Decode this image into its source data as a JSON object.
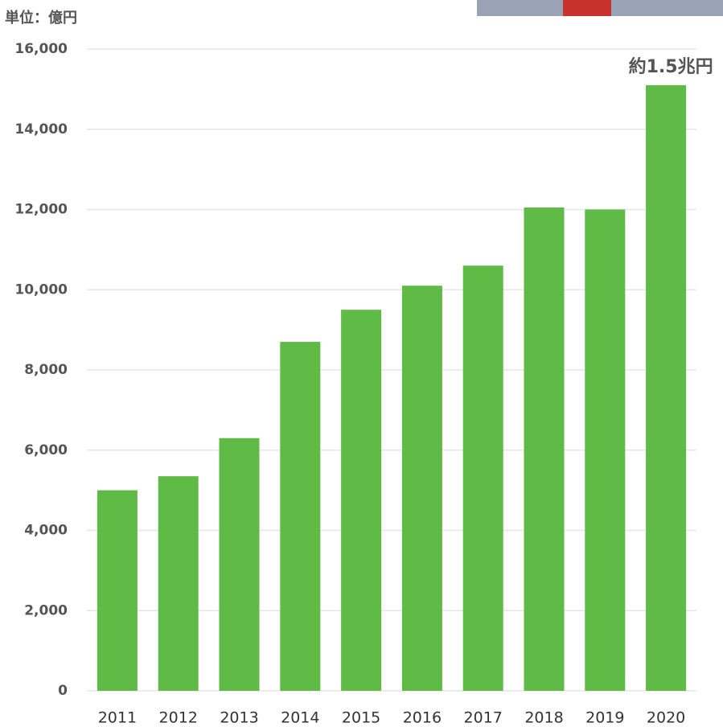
{
  "chart_data": {
    "type": "bar",
    "unit_label": "単位：億円",
    "annotation": "約1.5兆円",
    "categories": [
      "2011",
      "2012",
      "2013",
      "2014",
      "2015",
      "2016",
      "2017",
      "2018",
      "2019",
      "2020"
    ],
    "values": [
      5000,
      5350,
      6300,
      8700,
      9500,
      10100,
      10600,
      12050,
      12000,
      15100
    ],
    "color": "#5fba46",
    "ylim": [
      0,
      16000
    ],
    "yticks": [
      0,
      {
        "value": 2000,
        "label": "2,000"
      },
      {
        "value": 4000,
        "label": "4,000"
      },
      {
        "value": 6000,
        "label": "6,000"
      },
      {
        "value": 8000,
        "label": "8,000"
      },
      {
        "value": 10000,
        "label": "10,000"
      },
      {
        "value": 12000,
        "label": "12,000"
      },
      {
        "value": 14000,
        "label": "14,000"
      },
      {
        "value": 16000,
        "label": "16,000"
      }
    ],
    "grid": true
  }
}
